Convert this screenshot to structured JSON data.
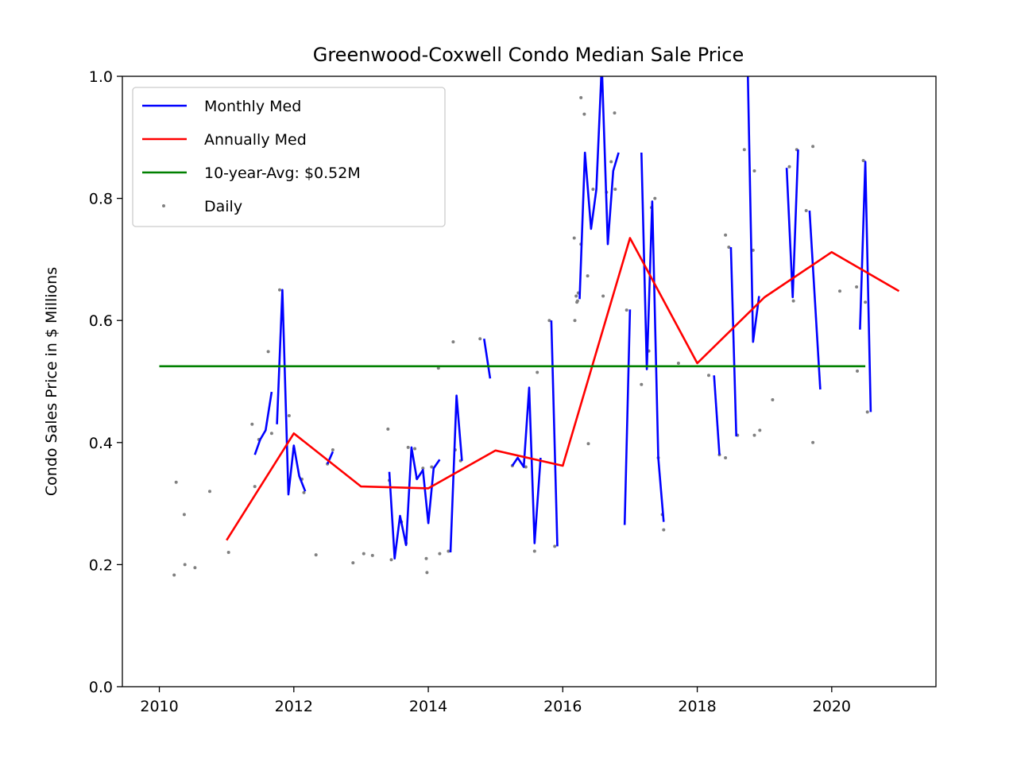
{
  "chart_data": {
    "type": "line",
    "title": "Greenwood-Coxwell Condo Median Sale Price",
    "xlabel": "",
    "ylabel": "Condo Sales Price in $ Millions",
    "xlim": [
      2009.45,
      2021.55
    ],
    "ylim": [
      0,
      1.0
    ],
    "xticks": [
      2010,
      2012,
      2014,
      2016,
      2018,
      2020
    ],
    "yticks": [
      0.0,
      0.2,
      0.4,
      0.6,
      0.8,
      1.0
    ],
    "ytick_labels": [
      "0.0",
      "0.2",
      "0.4",
      "0.6",
      "0.8",
      "1.0"
    ],
    "grid": false,
    "legend_position": "top-left",
    "series": [
      {
        "name": "Monthly Med",
        "type": "line",
        "color": "#0000ff",
        "segments": [
          [
            [
              2011.42,
              0.38
            ],
            [
              2011.5,
              0.405
            ],
            [
              2011.58,
              0.42
            ],
            [
              2011.67,
              0.483
            ]
          ],
          [
            [
              2011.75,
              0.43
            ],
            [
              2011.83,
              0.65
            ],
            [
              2011.92,
              0.315
            ],
            [
              2012.0,
              0.395
            ],
            [
              2012.08,
              0.345
            ],
            [
              2012.17,
              0.32
            ]
          ],
          [
            [
              2012.5,
              0.365
            ],
            [
              2012.58,
              0.385
            ]
          ],
          [
            [
              2013.42,
              0.352
            ],
            [
              2013.5,
              0.21
            ],
            [
              2013.58,
              0.28
            ],
            [
              2013.67,
              0.232
            ],
            [
              2013.75,
              0.392
            ],
            [
              2013.83,
              0.34
            ],
            [
              2013.92,
              0.355
            ],
            [
              2014.0,
              0.268
            ],
            [
              2014.08,
              0.358
            ],
            [
              2014.17,
              0.372
            ]
          ],
          [
            [
              2014.33,
              0.22
            ],
            [
              2014.42,
              0.477
            ],
            [
              2014.5,
              0.37
            ]
          ],
          [
            [
              2014.83,
              0.57
            ],
            [
              2014.92,
              0.505
            ]
          ],
          [
            [
              2015.25,
              0.362
            ],
            [
              2015.33,
              0.375
            ],
            [
              2015.42,
              0.36
            ],
            [
              2015.5,
              0.49
            ],
            [
              2015.58,
              0.235
            ],
            [
              2015.67,
              0.375
            ]
          ],
          [
            [
              2015.83,
              0.6
            ],
            [
              2015.92,
              0.23
            ]
          ],
          [
            [
              2016.25,
              0.635
            ],
            [
              2016.33,
              0.875
            ],
            [
              2016.42,
              0.75
            ],
            [
              2016.5,
              0.815
            ],
            [
              2016.58,
              1.02
            ],
            [
              2016.67,
              0.725
            ],
            [
              2016.75,
              0.845
            ],
            [
              2016.83,
              0.875
            ]
          ],
          [
            [
              2016.92,
              0.265
            ],
            [
              2017.0,
              0.618
            ]
          ],
          [
            [
              2017.17,
              0.875
            ],
            [
              2017.25,
              0.52
            ],
            [
              2017.33,
              0.795
            ],
            [
              2017.42,
              0.375
            ],
            [
              2017.5,
              0.27
            ]
          ],
          [
            [
              2018.25,
              0.51
            ],
            [
              2018.33,
              0.38
            ]
          ],
          [
            [
              2018.5,
              0.72
            ],
            [
              2018.58,
              0.41
            ]
          ],
          [
            [
              2018.75,
              1.02
            ],
            [
              2018.83,
              0.565
            ],
            [
              2018.92,
              0.64
            ]
          ],
          [
            [
              2019.33,
              0.85
            ],
            [
              2019.42,
              0.638
            ],
            [
              2019.5,
              0.88
            ]
          ],
          [
            [
              2019.67,
              0.78
            ],
            [
              2019.83,
              0.487
            ]
          ],
          [
            [
              2020.42,
              0.585
            ],
            [
              2020.5,
              0.86
            ],
            [
              2020.58,
              0.45
            ]
          ]
        ]
      },
      {
        "name": "Annually Med",
        "type": "line",
        "color": "#ff0000",
        "x": [
          2011,
          2012,
          2013,
          2014,
          2015,
          2016,
          2017,
          2018,
          2019,
          2020,
          2021
        ],
        "y": [
          0.24,
          0.415,
          0.328,
          0.325,
          0.387,
          0.362,
          0.735,
          0.53,
          0.638,
          0.712,
          0.648
        ]
      },
      {
        "name": "10-year-Avg: $0.52M",
        "type": "line",
        "color": "#008000",
        "x": [
          2010.0,
          2020.5
        ],
        "y": [
          0.525,
          0.525
        ]
      },
      {
        "name": "Daily",
        "type": "scatter",
        "color": "#808080",
        "points": [
          [
            2010.22,
            0.183
          ],
          [
            2010.25,
            0.335
          ],
          [
            2010.37,
            0.282
          ],
          [
            2010.38,
            0.2
          ],
          [
            2010.53,
            0.195
          ],
          [
            2010.75,
            0.32
          ],
          [
            2011.03,
            0.22
          ],
          [
            2011.38,
            0.43
          ],
          [
            2011.42,
            0.328
          ],
          [
            2011.48,
            0.405
          ],
          [
            2011.67,
            0.415
          ],
          [
            2011.62,
            0.549
          ],
          [
            2011.79,
            0.65
          ],
          [
            2011.93,
            0.444
          ],
          [
            2012.0,
            0.39
          ],
          [
            2012.12,
            0.34
          ],
          [
            2012.15,
            0.318
          ],
          [
            2012.33,
            0.216
          ],
          [
            2012.5,
            0.365
          ],
          [
            2012.58,
            0.388
          ],
          [
            2012.88,
            0.203
          ],
          [
            2013.04,
            0.218
          ],
          [
            2013.17,
            0.215
          ],
          [
            2013.4,
            0.422
          ],
          [
            2013.42,
            0.338
          ],
          [
            2013.45,
            0.208
          ],
          [
            2013.6,
            0.27
          ],
          [
            2013.67,
            0.235
          ],
          [
            2013.7,
            0.392
          ],
          [
            2013.8,
            0.39
          ],
          [
            2013.83,
            0.342
          ],
          [
            2013.92,
            0.358
          ],
          [
            2013.97,
            0.21
          ],
          [
            2013.98,
            0.187
          ],
          [
            2014.05,
            0.36
          ],
          [
            2014.15,
            0.522
          ],
          [
            2014.17,
            0.218
          ],
          [
            2014.3,
            0.222
          ],
          [
            2014.37,
            0.565
          ],
          [
            2014.4,
            0.388
          ],
          [
            2014.48,
            0.37
          ],
          [
            2014.77,
            0.57
          ],
          [
            2015.25,
            0.362
          ],
          [
            2015.45,
            0.36
          ],
          [
            2015.58,
            0.222
          ],
          [
            2015.62,
            0.515
          ],
          [
            2015.8,
            0.6
          ],
          [
            2015.88,
            0.23
          ],
          [
            2016.17,
            0.735
          ],
          [
            2016.18,
            0.6
          ],
          [
            2016.2,
            0.64
          ],
          [
            2016.21,
            0.63
          ],
          [
            2016.22,
            0.632
          ],
          [
            2016.23,
            0.645
          ],
          [
            2016.27,
            0.725
          ],
          [
            2016.27,
            0.965
          ],
          [
            2016.32,
            0.938
          ],
          [
            2016.37,
            0.673
          ],
          [
            2016.38,
            0.398
          ],
          [
            2016.45,
            0.815
          ],
          [
            2016.6,
            0.64
          ],
          [
            2016.65,
            0.81
          ],
          [
            2016.72,
            0.86
          ],
          [
            2016.78,
            0.815
          ],
          [
            2016.77,
            0.94
          ],
          [
            2016.95,
            0.617
          ],
          [
            2017.17,
            0.495
          ],
          [
            2017.28,
            0.55
          ],
          [
            2017.32,
            0.785
          ],
          [
            2017.37,
            0.8
          ],
          [
            2017.42,
            0.375
          ],
          [
            2017.48,
            0.282
          ],
          [
            2017.5,
            0.257
          ],
          [
            2017.72,
            0.53
          ],
          [
            2018.17,
            0.51
          ],
          [
            2018.33,
            0.38
          ],
          [
            2018.42,
            0.375
          ],
          [
            2018.42,
            0.74
          ],
          [
            2018.47,
            0.72
          ],
          [
            2018.6,
            0.412
          ],
          [
            2018.7,
            0.88
          ],
          [
            2018.85,
            0.845
          ],
          [
            2018.83,
            0.715
          ],
          [
            2018.85,
            0.412
          ],
          [
            2018.93,
            0.42
          ],
          [
            2019.12,
            0.47
          ],
          [
            2019.37,
            0.852
          ],
          [
            2019.43,
            0.632
          ],
          [
            2019.48,
            0.88
          ],
          [
            2019.62,
            0.78
          ],
          [
            2019.72,
            0.885
          ],
          [
            2019.72,
            0.4
          ],
          [
            2020.12,
            0.648
          ],
          [
            2020.37,
            0.655
          ],
          [
            2020.38,
            0.517
          ],
          [
            2020.47,
            0.862
          ],
          [
            2020.5,
            0.63
          ],
          [
            2020.53,
            0.45
          ]
        ]
      }
    ]
  }
}
